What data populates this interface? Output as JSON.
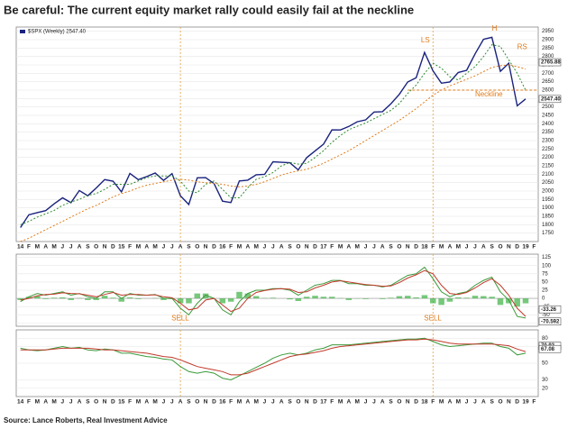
{
  "title": "Be careful: The current equity market rally could easily fail at the neckline",
  "source": "Source: Lance Roberts, Real Investment Advice",
  "chart_data": [
    {
      "type": "line",
      "categories": [
        "14",
        "F",
        "M",
        "A",
        "M",
        "J",
        "J",
        "A",
        "S",
        "O",
        "N",
        "D",
        "15",
        "F",
        "M",
        "A",
        "M",
        "J",
        "J",
        "A",
        "S",
        "O",
        "N",
        "D",
        "16",
        "F",
        "M",
        "A",
        "M",
        "J",
        "J",
        "A",
        "S",
        "O",
        "N",
        "D",
        "17",
        "F",
        "M",
        "A",
        "M",
        "J",
        "J",
        "A",
        "S",
        "O",
        "N",
        "D",
        "18",
        "F",
        "M",
        "A",
        "M",
        "J",
        "J",
        "A",
        "S",
        "O",
        "N",
        "D",
        "19",
        "F"
      ],
      "ylim": [
        1700,
        2975
      ],
      "yticks": [
        1750,
        1800,
        1850,
        1900,
        1950,
        2000,
        2050,
        2100,
        2150,
        2200,
        2250,
        2300,
        2350,
        2400,
        2450,
        2500,
        2550,
        2600,
        2650,
        2700,
        2750,
        2800,
        2850,
        2900,
        2950
      ],
      "series": [
        {
          "name": "$SPX (Weekly) 2547.40",
          "color": "#1a237e",
          "width": 1.4,
          "values": [
            1783,
            1859,
            1872,
            1884,
            1924,
            1960,
            1931,
            2003,
            1972,
            2018,
            2068,
            2059,
            1995,
            2105,
            2068,
            2086,
            2107,
            2063,
            2104,
            1972,
            1920,
            2079,
            2080,
            2044,
            1940,
            1932,
            2060,
            2065,
            2097,
            2099,
            2174,
            2171,
            2168,
            2126,
            2199,
            2239,
            2279,
            2364,
            2363,
            2384,
            2412,
            2423,
            2470,
            2472,
            2519,
            2575,
            2648,
            2674,
            2824,
            2714,
            2641,
            2648,
            2705,
            2718,
            2816,
            2902,
            2914,
            2712,
            2760,
            2507,
            2547.4,
            null
          ]
        },
        {
          "color": "#2e8b2e",
          "width": 1,
          "dash": "2,2",
          "values": [
            1800,
            1820,
            1845,
            1865,
            1885,
            1915,
            1935,
            1950,
            1975,
            1985,
            2010,
            2040,
            2040,
            2040,
            2060,
            2080,
            2090,
            2090,
            2090,
            2060,
            2000,
            1990,
            2040,
            2060,
            2010,
            1960,
            1960,
            2020,
            2070,
            2085,
            2110,
            2150,
            2170,
            2160,
            2165,
            2200,
            2240,
            2290,
            2330,
            2365,
            2385,
            2405,
            2430,
            2455,
            2480,
            2520,
            2580,
            2630,
            2700,
            2760,
            2730,
            2680,
            2660,
            2700,
            2740,
            2800,
            2870,
            2860,
            2780,
            2700,
            2600,
            null
          ]
        },
        {
          "color": "#e07b1a",
          "width": 1,
          "dash": "2,2",
          "values": [
            1700,
            1720,
            1745,
            1770,
            1795,
            1820,
            1845,
            1870,
            1895,
            1915,
            1940,
            1965,
            1985,
            2000,
            2020,
            2035,
            2045,
            2055,
            2065,
            2070,
            2065,
            2055,
            2050,
            2045,
            2040,
            2030,
            2025,
            2030,
            2040,
            2055,
            2075,
            2095,
            2110,
            2120,
            2130,
            2145,
            2165,
            2190,
            2215,
            2240,
            2270,
            2300,
            2330,
            2360,
            2390,
            2420,
            2455,
            2490,
            2530,
            2570,
            2600,
            2625,
            2645,
            2665,
            2685,
            2710,
            2735,
            2745,
            2750,
            2740,
            2725,
            null
          ]
        }
      ],
      "neckline_level": 2600,
      "tags": [
        {
          "value": 2765.88,
          "label": "2765.88"
        },
        {
          "value": 2547.4,
          "label": "2547.40"
        }
      ],
      "annotations": [
        "LS",
        "H",
        "RS",
        "Neckline"
      ]
    },
    {
      "type": "macd",
      "ylim": [
        -85,
        135
      ],
      "yticks": [
        125,
        100,
        75,
        50,
        25,
        0,
        -25,
        -50,
        -75
      ],
      "histogram": {
        "color": "#3cb043",
        "values": [
          -5,
          5,
          7,
          -2,
          2,
          3,
          -5,
          1,
          -5,
          -5,
          8,
          2,
          -10,
          3,
          -2,
          0,
          1,
          -5,
          -2,
          -15,
          -15,
          15,
          15,
          0,
          -15,
          -10,
          20,
          15,
          7,
          1,
          2,
          0,
          -3,
          -8,
          5,
          8,
          5,
          5,
          1,
          -5,
          -1,
          -2,
          0,
          -2,
          2,
          7,
          8,
          3,
          10,
          -15,
          -20,
          -10,
          3,
          2,
          8,
          7,
          5,
          -20,
          -15,
          -25,
          -15,
          null
        ]
      },
      "series": [
        {
          "color": "#3a9a3a",
          "width": 1,
          "values": [
            -10,
            5,
            15,
            10,
            15,
            20,
            10,
            15,
            5,
            0,
            20,
            20,
            0,
            15,
            10,
            10,
            12,
            0,
            0,
            -30,
            -50,
            -15,
            10,
            0,
            -35,
            -50,
            -10,
            15,
            25,
            25,
            30,
            30,
            25,
            10,
            25,
            40,
            45,
            55,
            55,
            45,
            45,
            40,
            40,
            35,
            40,
            55,
            70,
            75,
            95,
            60,
            20,
            5,
            15,
            20,
            40,
            55,
            65,
            20,
            -5,
            -55,
            -60,
            null
          ]
        },
        {
          "color": "#c0392b",
          "width": 1,
          "values": [
            -5,
            0,
            8,
            12,
            13,
            17,
            15,
            14,
            10,
            5,
            12,
            18,
            10,
            12,
            12,
            10,
            11,
            5,
            2,
            -15,
            -35,
            -30,
            -5,
            0,
            -20,
            -40,
            -30,
            0,
            18,
            24,
            28,
            30,
            28,
            18,
            20,
            32,
            40,
            50,
            54,
            50,
            46,
            42,
            40,
            37,
            38,
            48,
            62,
            72,
            85,
            75,
            40,
            15,
            12,
            18,
            32,
            48,
            60,
            40,
            10,
            -30,
            -55,
            null
          ]
        }
      ],
      "tags": [
        {
          "value": -33.26,
          "label": "-33.26"
        },
        {
          "value": -70.592,
          "label": "-70.592"
        }
      ],
      "annotations": [
        "SELL",
        "SELL"
      ]
    },
    {
      "type": "line",
      "categories": [
        "14",
        "F",
        "M",
        "A",
        "M",
        "J",
        "J",
        "A",
        "S",
        "O",
        "N",
        "D",
        "15",
        "F",
        "M",
        "A",
        "M",
        "J",
        "J",
        "A",
        "S",
        "O",
        "N",
        "D",
        "16",
        "F",
        "M",
        "A",
        "M",
        "J",
        "J",
        "A",
        "S",
        "O",
        "N",
        "D",
        "17",
        "F",
        "M",
        "A",
        "M",
        "J",
        "J",
        "A",
        "S",
        "O",
        "N",
        "D",
        "18",
        "F",
        "M",
        "A",
        "M",
        "J",
        "J",
        "A",
        "S",
        "O",
        "N",
        "D",
        "19",
        "F"
      ],
      "ylim": [
        10,
        90
      ],
      "yticks": [
        80,
        70,
        50,
        30,
        20
      ],
      "series": [
        {
          "color": "#3a9a3a",
          "width": 1,
          "values": [
            68,
            66,
            65,
            66,
            68,
            70,
            68,
            69,
            66,
            65,
            67,
            66,
            62,
            62,
            60,
            58,
            57,
            55,
            54,
            46,
            40,
            38,
            40,
            38,
            32,
            30,
            35,
            40,
            45,
            50,
            56,
            60,
            62,
            60,
            62,
            66,
            68,
            72,
            72,
            72,
            73,
            74,
            75,
            76,
            77,
            78,
            79,
            79,
            80,
            76,
            72,
            70,
            71,
            72,
            73,
            74,
            74,
            70,
            68,
            60,
            62,
            null
          ]
        },
        {
          "color": "#c0392b",
          "width": 1,
          "values": [
            66,
            66,
            66,
            66,
            67,
            68,
            68,
            68,
            68,
            67,
            66,
            66,
            65,
            64,
            63,
            62,
            60,
            58,
            57,
            54,
            50,
            46,
            44,
            42,
            40,
            36,
            36,
            38,
            42,
            46,
            50,
            54,
            58,
            60,
            61,
            63,
            65,
            68,
            70,
            71,
            72,
            73,
            74,
            75,
            76,
            77,
            78,
            78,
            79,
            78,
            76,
            74,
            73,
            73,
            73,
            73,
            73,
            72,
            71,
            67,
            64,
            null
          ]
        }
      ],
      "tags": [
        {
          "value": 70.92,
          "label": "70.92"
        },
        {
          "value": 67.08,
          "label": "67.08"
        }
      ]
    }
  ]
}
